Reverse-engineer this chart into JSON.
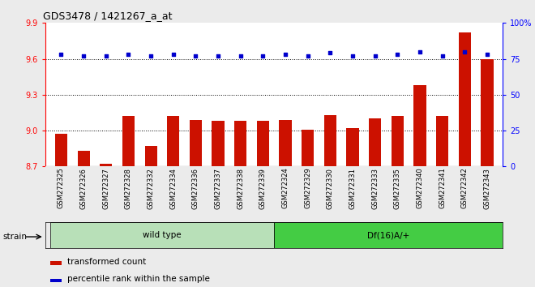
{
  "title": "GDS3478 / 1421267_a_at",
  "samples": [
    "GSM272325",
    "GSM272326",
    "GSM272327",
    "GSM272328",
    "GSM272332",
    "GSM272334",
    "GSM272336",
    "GSM272337",
    "GSM272338",
    "GSM272339",
    "GSM272324",
    "GSM272329",
    "GSM272330",
    "GSM272331",
    "GSM272333",
    "GSM272335",
    "GSM272340",
    "GSM272341",
    "GSM272342",
    "GSM272343"
  ],
  "transformed_count": [
    8.97,
    8.83,
    8.72,
    9.12,
    8.87,
    9.12,
    9.09,
    9.08,
    9.08,
    9.08,
    9.09,
    9.01,
    9.13,
    9.02,
    9.1,
    9.12,
    9.38,
    9.12,
    9.82,
    9.6
  ],
  "percentile_rank": [
    78,
    77,
    77,
    78,
    77,
    78,
    77,
    77,
    77,
    77,
    78,
    77,
    79,
    77,
    77,
    78,
    80,
    77,
    80,
    78
  ],
  "wild_type_count": 10,
  "bar_color": "#cc1100",
  "dot_color": "#0000cc",
  "ylim_left": [
    8.7,
    9.9
  ],
  "ylim_right": [
    0,
    100
  ],
  "yticks_left": [
    8.7,
    9.0,
    9.3,
    9.6,
    9.9
  ],
  "yticks_right": [
    0,
    25,
    50,
    75,
    100
  ],
  "grid_values": [
    9.0,
    9.3,
    9.6
  ],
  "strain_label": "strain",
  "wt_label": "wild type",
  "df_label": "Df(16)A/+",
  "legend_bar": "transformed count",
  "legend_dot": "percentile rank within the sample",
  "bg_color": "#ebebeb",
  "plot_bg": "#ffffff",
  "wt_color": "#b8e0b8",
  "df_color": "#44cc44",
  "title_fontsize": 9,
  "tick_fontsize": 7,
  "label_fontsize": 7.5
}
